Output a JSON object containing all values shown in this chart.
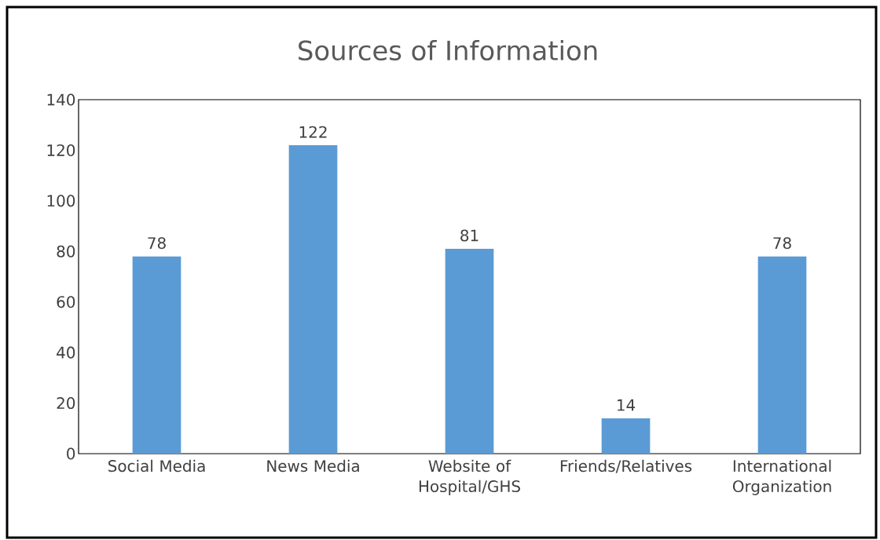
{
  "chart_data": {
    "type": "bar",
    "title": "Sources of Information",
    "categories": [
      "Social Media",
      "News Media",
      "Website of Hospital/GHS",
      "Friends/Relatives",
      "International Organization"
    ],
    "values": [
      78,
      122,
      81,
      14,
      78
    ],
    "color": "#5b9bd5",
    "ylim": [
      0,
      140
    ],
    "yticks": [
      0,
      20,
      40,
      60,
      80,
      100,
      120,
      140
    ],
    "grid": false,
    "data_labels": true
  }
}
